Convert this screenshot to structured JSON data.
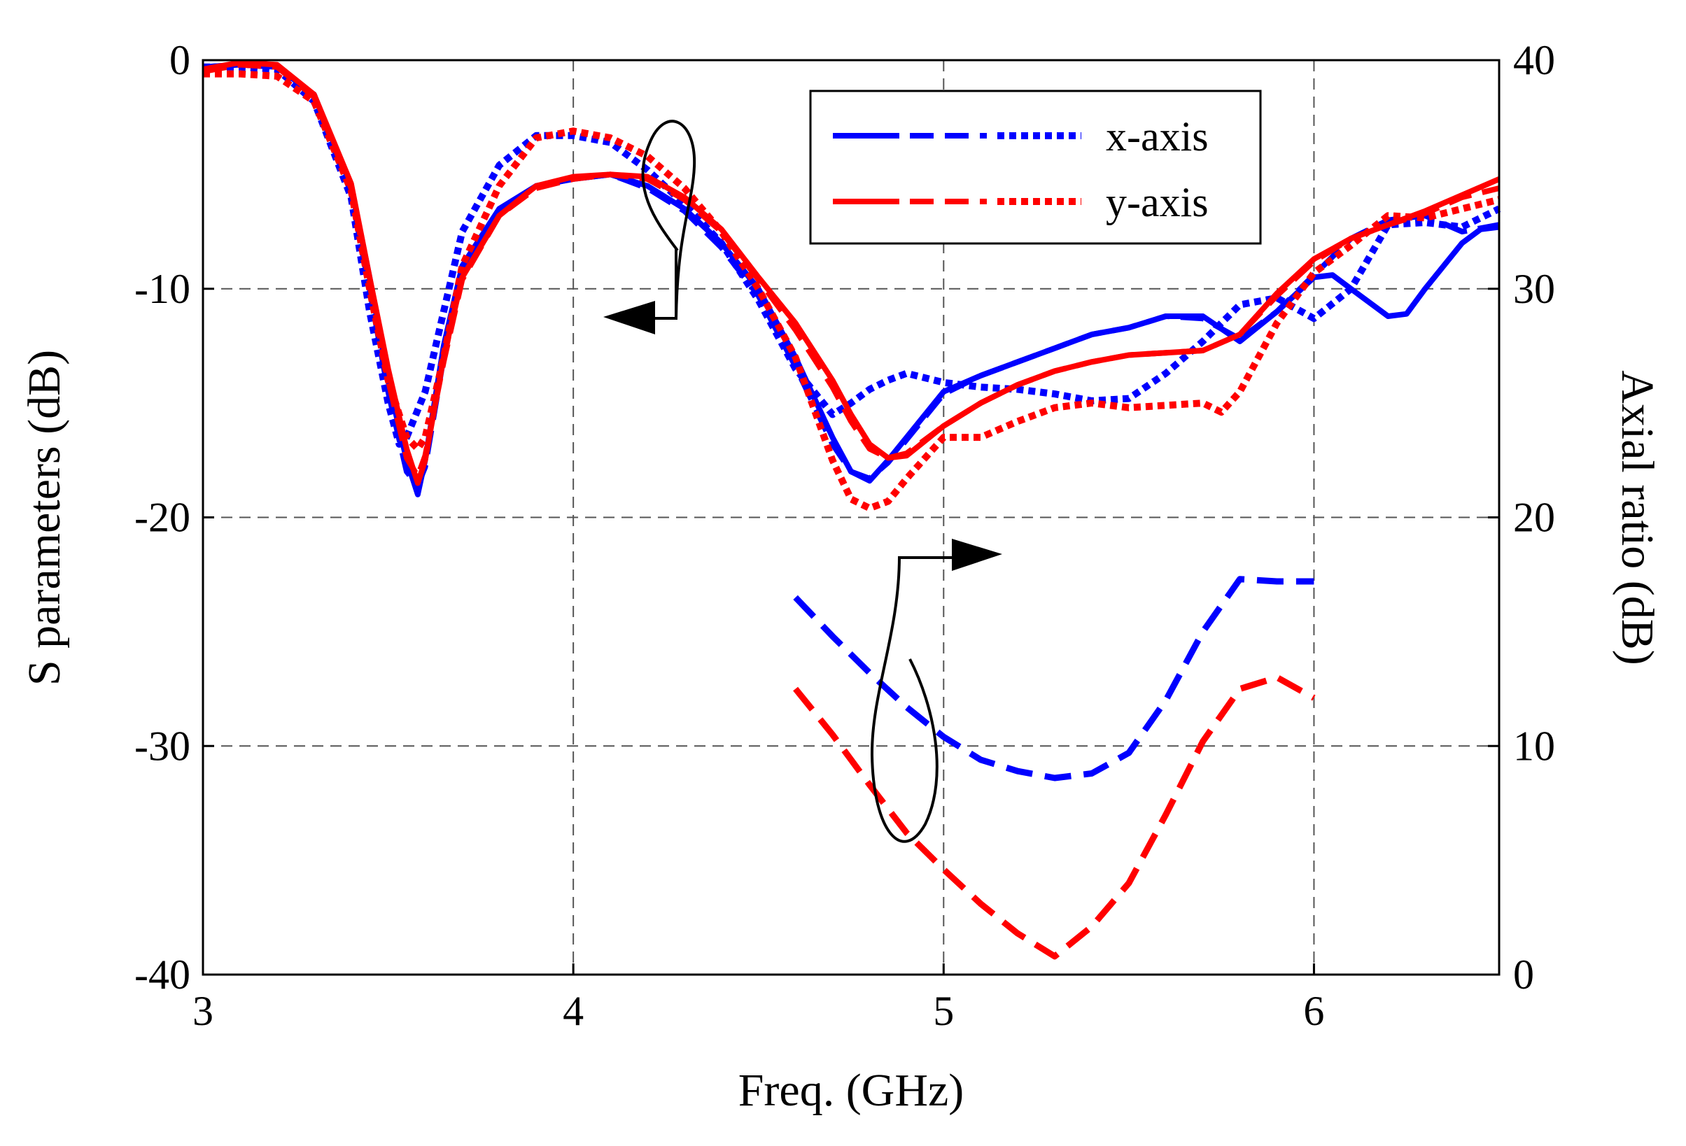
{
  "chart_data": {
    "type": "line",
    "title": "",
    "xlabel": "Freq. (GHz)",
    "ylabel": "S parameters (dB)",
    "ylabel_right": "Axial ratio (dB)",
    "xlim": [
      3,
      6.5
    ],
    "ylim": [
      -40,
      0
    ],
    "ylim_right": [
      0,
      40
    ],
    "xticks": [
      3,
      4,
      5,
      6
    ],
    "xtick_labels": [
      "3",
      "4",
      "5",
      "6"
    ],
    "yticks": [
      0,
      -10,
      -20,
      -30,
      -40
    ],
    "ytick_labels": [
      "0",
      "-10",
      "-20",
      "-30",
      "-40"
    ],
    "yticks_right": [
      40,
      30,
      20,
      10,
      0
    ],
    "ytick_labels_right": [
      "40",
      "30",
      "20",
      "10",
      "0"
    ],
    "grid": true,
    "legend": {
      "position": "top-right",
      "entries": [
        {
          "label": "x-axis",
          "color": "#0000ff"
        },
        {
          "label": "y-axis",
          "color": "#ff0000"
        }
      ]
    },
    "series": [
      {
        "name": "x-axis solid (S parameter)",
        "color": "#0000ff",
        "style": "solid",
        "axis": "left",
        "x": [
          3.0,
          3.1,
          3.2,
          3.3,
          3.4,
          3.45,
          3.5,
          3.55,
          3.58,
          3.6,
          3.65,
          3.7,
          3.8,
          3.9,
          4.0,
          4.1,
          4.2,
          4.3,
          4.4,
          4.5,
          4.6,
          4.7,
          4.75,
          4.8,
          4.85,
          4.9,
          5.0,
          5.1,
          5.2,
          5.3,
          5.4,
          5.5,
          5.6,
          5.7,
          5.8,
          5.9,
          6.0,
          6.05,
          6.1,
          6.2,
          6.25,
          6.3,
          6.4,
          6.45,
          6.5
        ],
        "y": [
          -0.3,
          -0.2,
          -0.3,
          -1.5,
          -5.5,
          -9.5,
          -14,
          -17.5,
          -19,
          -17.5,
          -12.5,
          -9,
          -6.5,
          -5.5,
          -5.2,
          -5.0,
          -5.5,
          -6.5,
          -8,
          -10,
          -13,
          -16.5,
          -18,
          -18.4,
          -17.5,
          -16.5,
          -14.5,
          -13.8,
          -13.2,
          -12.6,
          -12,
          -11.7,
          -11.2,
          -11.2,
          -12.3,
          -11,
          -9.5,
          -9.4,
          -10,
          -11.2,
          -11.1,
          -10,
          -8,
          -7.4,
          -7.3
        ]
      },
      {
        "name": "x-axis dashed (S parameter)",
        "color": "#0000ff",
        "style": "dashed",
        "axis": "left",
        "x": [
          3.0,
          3.1,
          3.2,
          3.3,
          3.4,
          3.45,
          3.5,
          3.55,
          3.58,
          3.6,
          3.65,
          3.7,
          3.8,
          3.9,
          4.0,
          4.1,
          4.2,
          4.3,
          4.4,
          4.5,
          4.6,
          4.7,
          4.75,
          4.8,
          4.85,
          4.9,
          5.0,
          5.1,
          5.2,
          5.3,
          5.4,
          5.5,
          5.6,
          5.7,
          5.8,
          5.9,
          6.0,
          6.1,
          6.2,
          6.3,
          6.4,
          6.5
        ],
        "y": [
          -0.3,
          -0.2,
          -0.3,
          -1.6,
          -5.8,
          -10,
          -14.5,
          -18,
          -18.6,
          -17.8,
          -13,
          -9.3,
          -6.6,
          -5.5,
          -5.2,
          -5.0,
          -5.6,
          -6.6,
          -8.2,
          -10.3,
          -13.4,
          -16.8,
          -18,
          -18.3,
          -17.6,
          -16.6,
          -14.6,
          -13.8,
          -13.2,
          -12.6,
          -12,
          -11.7,
          -11.2,
          -11.3,
          -12.2,
          -11,
          -9.4,
          -7.8,
          -7.0,
          -6.8,
          -7.5,
          -7.2
        ]
      },
      {
        "name": "x-axis dotted (S parameter)",
        "color": "#0000ff",
        "style": "dotted",
        "axis": "left",
        "x": [
          3.0,
          3.1,
          3.2,
          3.3,
          3.4,
          3.45,
          3.5,
          3.53,
          3.55,
          3.6,
          3.65,
          3.7,
          3.8,
          3.9,
          4.0,
          4.1,
          4.2,
          4.3,
          4.4,
          4.5,
          4.6,
          4.7,
          4.75,
          4.8,
          4.85,
          4.9,
          5.0,
          5.1,
          5.2,
          5.3,
          5.4,
          5.5,
          5.6,
          5.7,
          5.8,
          5.9,
          6.0,
          6.1,
          6.2,
          6.3,
          6.4,
          6.5
        ],
        "y": [
          -0.3,
          -0.3,
          -0.4,
          -1.8,
          -6,
          -11,
          -15,
          -16.8,
          -16.5,
          -14.5,
          -11,
          -7.5,
          -4.6,
          -3.3,
          -3.3,
          -3.6,
          -4.8,
          -6.3,
          -8,
          -10.5,
          -13.5,
          -15.5,
          -15,
          -14.4,
          -14,
          -13.7,
          -14.1,
          -14.3,
          -14.4,
          -14.6,
          -14.9,
          -14.8,
          -13.7,
          -12.3,
          -10.7,
          -10.4,
          -11.3,
          -10,
          -7.2,
          -7.1,
          -7.3,
          -6.5
        ]
      },
      {
        "name": "y-axis solid (S parameter)",
        "color": "#ff0000",
        "style": "solid",
        "axis": "left",
        "x": [
          3.0,
          3.1,
          3.2,
          3.3,
          3.4,
          3.45,
          3.5,
          3.55,
          3.58,
          3.6,
          3.65,
          3.7,
          3.8,
          3.9,
          4.0,
          4.1,
          4.2,
          4.3,
          4.4,
          4.5,
          4.6,
          4.7,
          4.75,
          4.8,
          4.85,
          4.9,
          5.0,
          5.1,
          5.2,
          5.3,
          5.4,
          5.5,
          5.6,
          5.7,
          5.8,
          5.9,
          6.0,
          6.1,
          6.2,
          6.3,
          6.4,
          6.5
        ],
        "y": [
          -0.4,
          -0.1,
          -0.2,
          -1.5,
          -5.4,
          -9.5,
          -13.5,
          -17,
          -18.5,
          -17.5,
          -13,
          -9.5,
          -6.8,
          -5.5,
          -5.1,
          -5.0,
          -5.1,
          -6,
          -7.4,
          -9.5,
          -11.5,
          -14,
          -15.5,
          -16.8,
          -17.4,
          -17.3,
          -16,
          -15,
          -14.2,
          -13.6,
          -13.2,
          -12.9,
          -12.8,
          -12.7,
          -12,
          -10.2,
          -8.7,
          -7.8,
          -7.2,
          -6.6,
          -5.9,
          -5.2
        ]
      },
      {
        "name": "y-axis dashed (S parameter)",
        "color": "#ff0000",
        "style": "dashed",
        "axis": "left",
        "x": [
          3.0,
          3.1,
          3.2,
          3.3,
          3.4,
          3.45,
          3.5,
          3.55,
          3.58,
          3.6,
          3.65,
          3.7,
          3.8,
          3.9,
          4.0,
          4.1,
          4.2,
          4.3,
          4.4,
          4.5,
          4.6,
          4.7,
          4.75,
          4.8,
          4.85,
          4.9,
          5.0,
          5.1,
          5.2,
          5.3,
          5.4,
          5.5,
          5.6,
          5.7,
          5.8,
          5.9,
          6.0,
          6.1,
          6.2,
          6.3,
          6.4,
          6.5
        ],
        "y": [
          -0.5,
          -0.2,
          -0.3,
          -1.6,
          -5.6,
          -9.8,
          -14,
          -17.4,
          -18.2,
          -17.3,
          -13.2,
          -9.6,
          -6.8,
          -5.6,
          -5.2,
          -5.0,
          -5.2,
          -6.1,
          -7.5,
          -9.6,
          -11.8,
          -14.3,
          -15.8,
          -17,
          -17.4,
          -17.2,
          -16,
          -15,
          -14.2,
          -13.6,
          -13.2,
          -12.9,
          -12.8,
          -12.7,
          -12,
          -10.3,
          -8.8,
          -7.8,
          -7.2,
          -6.7,
          -6.0,
          -5.6
        ]
      },
      {
        "name": "y-axis dotted (S parameter)",
        "color": "#ff0000",
        "style": "dotted",
        "axis": "left",
        "x": [
          3.0,
          3.1,
          3.2,
          3.3,
          3.4,
          3.45,
          3.5,
          3.55,
          3.58,
          3.6,
          3.65,
          3.7,
          3.8,
          3.9,
          4.0,
          4.1,
          4.2,
          4.3,
          4.4,
          4.5,
          4.6,
          4.7,
          4.75,
          4.8,
          4.85,
          4.9,
          5.0,
          5.1,
          5.2,
          5.3,
          5.4,
          5.5,
          5.6,
          5.7,
          5.75,
          5.8,
          5.9,
          6.0,
          6.1,
          6.2,
          6.3,
          6.4,
          6.5
        ],
        "y": [
          -0.6,
          -0.6,
          -0.7,
          -1.8,
          -5.7,
          -10,
          -14,
          -16.5,
          -17,
          -16.5,
          -13,
          -9,
          -5.5,
          -3.4,
          -3.1,
          -3.4,
          -4.2,
          -5.6,
          -7.5,
          -10,
          -13,
          -17.5,
          -19.2,
          -19.6,
          -19.3,
          -18.3,
          -16.5,
          -16.5,
          -15.8,
          -15.2,
          -15,
          -15.2,
          -15.1,
          -15,
          -15.4,
          -14.5,
          -11.5,
          -9.3,
          -8.1,
          -6.8,
          -6.9,
          -6.5,
          -6.1
        ]
      },
      {
        "name": "x-axis axial ratio",
        "color": "#0000ff",
        "style": "dashed-long",
        "axis": "right",
        "x": [
          4.6,
          4.7,
          4.8,
          4.9,
          5.0,
          5.1,
          5.2,
          5.3,
          5.4,
          5.5,
          5.6,
          5.7,
          5.8,
          5.9,
          6.0
        ],
        "y": [
          16.5,
          14.8,
          13.2,
          11.7,
          10.4,
          9.4,
          8.9,
          8.6,
          8.8,
          9.7,
          12,
          15,
          17.3,
          17.2,
          17.2
        ]
      },
      {
        "name": "y-axis axial ratio",
        "color": "#ff0000",
        "style": "dashed-long",
        "axis": "right",
        "x": [
          4.6,
          4.7,
          4.8,
          4.9,
          5.0,
          5.1,
          5.2,
          5.3,
          5.4,
          5.5,
          5.6,
          5.7,
          5.8,
          5.9,
          6.0
        ],
        "y": [
          12.5,
          10.5,
          8.3,
          6.2,
          4.6,
          3.1,
          1.8,
          0.8,
          2.1,
          4.0,
          7.0,
          10.2,
          12.5,
          13.0,
          12.1
        ]
      }
    ]
  }
}
